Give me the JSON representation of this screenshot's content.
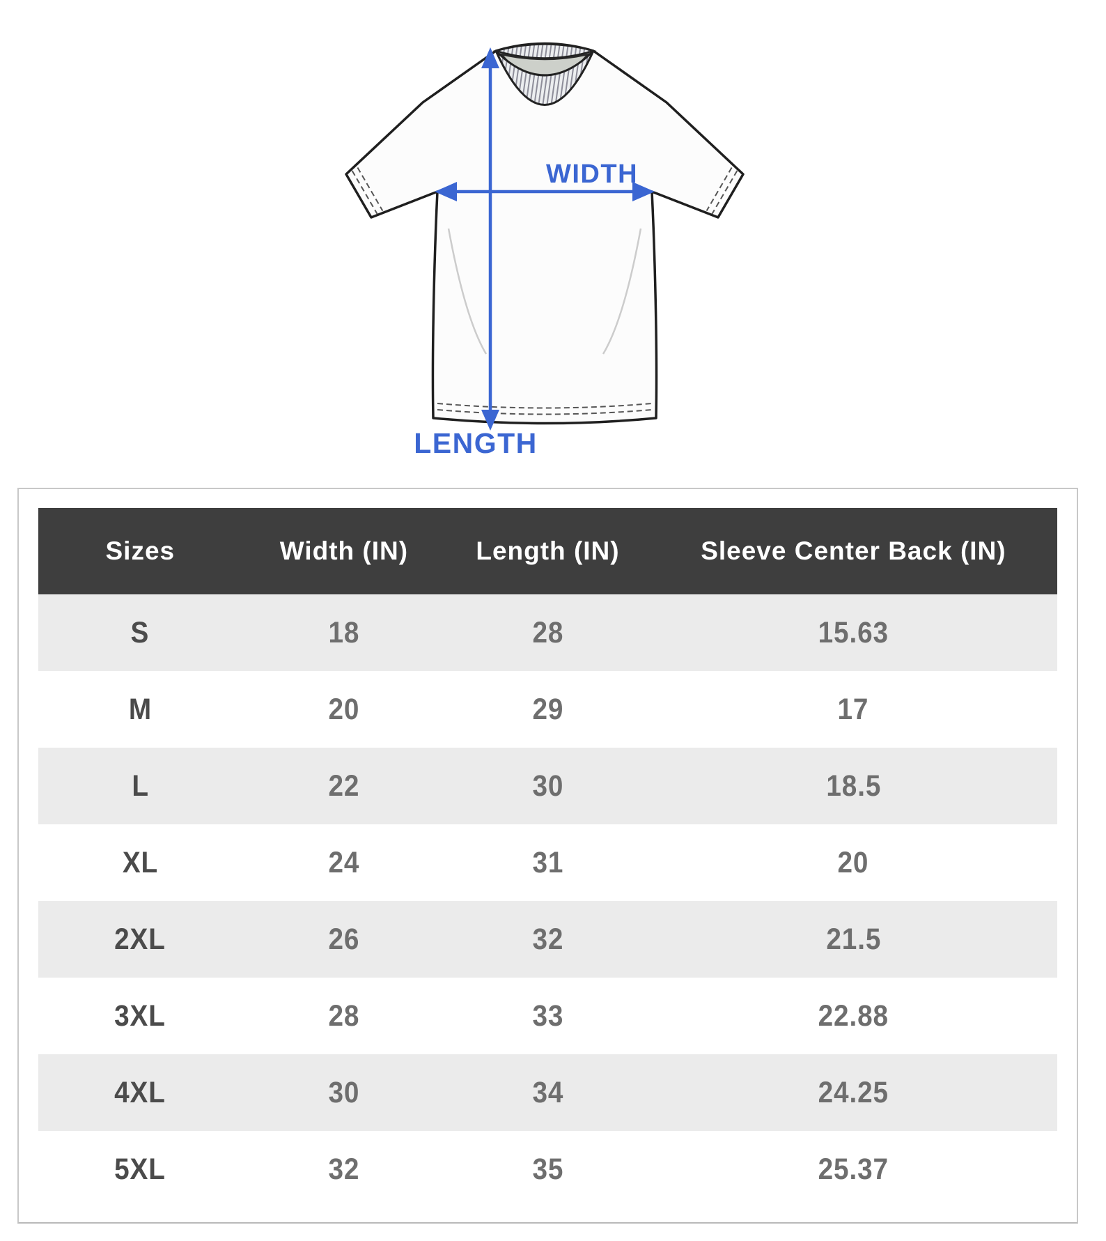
{
  "diagram": {
    "width_label": "WIDTH",
    "length_label": "LENGTH",
    "arrow_color": "#3b66d2"
  },
  "size_chart": {
    "columns": [
      "Sizes",
      "Width (IN)",
      "Length (IN)",
      "Sleeve Center Back (IN)"
    ],
    "rows": [
      {
        "size": "S",
        "width": "18",
        "length": "28",
        "sleeve_center_back": "15.63"
      },
      {
        "size": "M",
        "width": "20",
        "length": "29",
        "sleeve_center_back": "17"
      },
      {
        "size": "L",
        "width": "22",
        "length": "30",
        "sleeve_center_back": "18.5"
      },
      {
        "size": "XL",
        "width": "24",
        "length": "31",
        "sleeve_center_back": "20"
      },
      {
        "size": "2XL",
        "width": "26",
        "length": "32",
        "sleeve_center_back": "21.5"
      },
      {
        "size": "3XL",
        "width": "28",
        "length": "33",
        "sleeve_center_back": "22.88"
      },
      {
        "size": "4XL",
        "width": "30",
        "length": "34",
        "sleeve_center_back": "24.25"
      },
      {
        "size": "5XL",
        "width": "32",
        "length": "35",
        "sleeve_center_back": "25.37"
      }
    ],
    "colors": {
      "header_bg": "#3e3e3e",
      "header_text": "#ffffff",
      "row_alt_bg": "#ebebeb",
      "row_bg": "#ffffff",
      "size_text": "#4b4b4b",
      "value_text": "#6e6e6e"
    }
  }
}
